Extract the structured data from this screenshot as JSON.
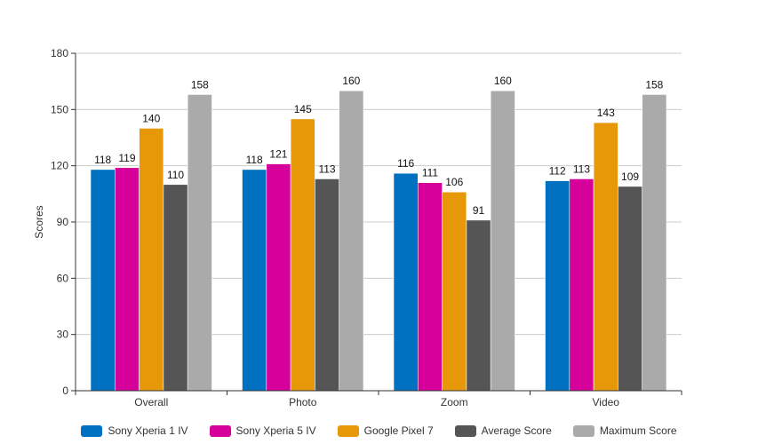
{
  "chart_data": {
    "type": "bar",
    "title": "",
    "xlabel": "",
    "ylabel": "Scores",
    "ylim": [
      0,
      180
    ],
    "yticks": [
      0,
      30,
      60,
      90,
      120,
      150,
      180
    ],
    "grid": true,
    "legend_position": "bottom",
    "categories": [
      "Overall",
      "Photo",
      "Zoom",
      "Video"
    ],
    "series": [
      {
        "name": "Sony Xperia 1 IV",
        "color": "#0070c0",
        "values": [
          118,
          118,
          116,
          112
        ]
      },
      {
        "name": "Sony Xperia 5 IV",
        "color": "#d6009a",
        "values": [
          119,
          121,
          111,
          113
        ]
      },
      {
        "name": "Google Pixel 7",
        "color": "#e69808",
        "values": [
          140,
          145,
          106,
          143
        ]
      },
      {
        "name": "Average Score",
        "color": "#555555",
        "values": [
          110,
          113,
          91,
          109
        ]
      },
      {
        "name": "Maximum Score",
        "color": "#aaaaaa",
        "values": [
          158,
          160,
          160,
          158
        ]
      }
    ]
  }
}
